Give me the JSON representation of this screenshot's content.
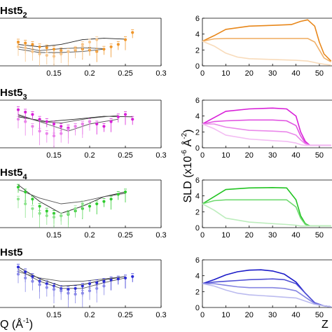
{
  "figure": {
    "left_xlabel": "Q (Å",
    "left_xlabel_sup": "-1",
    "left_xlabel_close": ")",
    "right_ylabel": "SLD (x10",
    "right_ylabel_sup": "-6",
    "right_ylabel_unit": " Å",
    "right_ylabel_sup2": "-2",
    "right_ylabel_close": ")",
    "right_xlabel_partial": "Z"
  },
  "chart_data": [
    {
      "type": "scatter",
      "panel": "reflectivity",
      "title": "Hst5",
      "title_sub": "2",
      "color": "#f0962a",
      "xlim": [
        0.1,
        0.3
      ],
      "xticks": [
        "0.15",
        "0.2",
        "0.25",
        "0.3"
      ],
      "series": [
        {
          "x": [
            0.1,
            0.11,
            0.12,
            0.13,
            0.14,
            0.15,
            0.16,
            0.17,
            0.18,
            0.19,
            0.2,
            0.21,
            0.22,
            0.23,
            0.24,
            0.25,
            0.26
          ],
          "y": [
            0.5,
            0.48,
            0.45,
            0.4,
            0.38,
            0.35,
            0.32,
            0.3,
            0.33,
            0.35,
            0.33,
            0.3,
            0.35,
            0.4,
            0.45,
            0.55,
            0.7
          ]
        },
        {
          "x": [
            0.1,
            0.11,
            0.12,
            0.13,
            0.14,
            0.15,
            0.16,
            0.17,
            0.18,
            0.19,
            0.2,
            0.21
          ],
          "y": [
            0.4,
            0.38,
            0.3,
            0.25,
            0.22,
            0.2,
            0.25,
            0.3,
            0.35,
            0.45,
            0.5,
            0.55
          ]
        }
      ],
      "fits": [
        {
          "x": [
            0.1,
            0.13,
            0.16,
            0.19,
            0.22,
            0.25
          ],
          "y": [
            0.45,
            0.4,
            0.45,
            0.55,
            0.58,
            0.56
          ]
        },
        {
          "x": [
            0.1,
            0.13,
            0.16,
            0.19,
            0.22
          ],
          "y": [
            0.4,
            0.32,
            0.36,
            0.38,
            0.36
          ]
        },
        {
          "x": [
            0.1,
            0.13,
            0.16,
            0.19,
            0.22
          ],
          "y": [
            0.35,
            0.28,
            0.28,
            0.3,
            0.35
          ]
        }
      ]
    },
    {
      "type": "line",
      "panel": "sld",
      "color": "#e8871a",
      "xlim": [
        0,
        55
      ],
      "ylim": [
        0,
        6
      ],
      "xticks": [
        "0",
        "10",
        "20",
        "30",
        "40",
        "50"
      ],
      "yticks": [
        "0",
        "2",
        "4",
        "6"
      ],
      "series": [
        {
          "x": [
            0,
            5,
            10,
            20,
            30,
            38,
            42,
            45,
            48,
            50,
            52,
            55
          ],
          "y": [
            3.1,
            3.8,
            4.6,
            5.0,
            5.1,
            5.2,
            5.6,
            5.8,
            5.0,
            3.0,
            1.5,
            0.6
          ]
        },
        {
          "x": [
            0,
            5,
            10,
            20,
            30,
            40,
            45,
            48,
            50,
            52,
            55
          ],
          "y": [
            3.1,
            3.4,
            3.45,
            3.45,
            3.45,
            3.45,
            3.45,
            3.0,
            2.0,
            1.0,
            0.5
          ]
        },
        {
          "x": [
            0,
            5,
            10,
            15,
            20,
            30,
            40,
            45,
            50,
            52,
            55
          ],
          "y": [
            3.1,
            2.5,
            1.6,
            1.1,
            0.9,
            0.8,
            0.7,
            0.6,
            0.3,
            0.2,
            0.1
          ]
        }
      ]
    },
    {
      "type": "scatter",
      "panel": "reflectivity",
      "title": "Hst5",
      "title_sub": "3",
      "color": "#d81fd8",
      "xlim": [
        0.1,
        0.3
      ],
      "xticks": [
        "0.15",
        "0.2",
        "0.25",
        "0.3"
      ],
      "series": [
        {
          "x": [
            0.1,
            0.11,
            0.12,
            0.13,
            0.14,
            0.15,
            0.16,
            0.17,
            0.18,
            0.19,
            0.2,
            0.21,
            0.22,
            0.23,
            0.24,
            0.25,
            0.26
          ],
          "y": [
            0.8,
            0.75,
            0.7,
            0.6,
            0.55,
            0.5,
            0.45,
            0.42,
            0.45,
            0.5,
            0.55,
            0.5,
            0.45,
            0.55,
            0.65,
            0.7,
            0.6
          ]
        },
        {
          "x": [
            0.1,
            0.11,
            0.12,
            0.13,
            0.14,
            0.15,
            0.16,
            0.17,
            0.18,
            0.19,
            0.2
          ],
          "y": [
            0.6,
            0.55,
            0.45,
            0.35,
            0.3,
            0.25,
            0.3,
            0.38,
            0.45,
            0.5,
            0.55
          ]
        }
      ],
      "fits": [
        {
          "x": [
            0.1,
            0.14,
            0.18,
            0.22,
            0.26
          ],
          "y": [
            0.65,
            0.55,
            0.6,
            0.66,
            0.65
          ]
        },
        {
          "x": [
            0.1,
            0.14,
            0.17,
            0.2,
            0.24
          ],
          "y": [
            0.7,
            0.5,
            0.35,
            0.5,
            0.6
          ]
        },
        {
          "x": [
            0.1,
            0.13,
            0.16,
            0.2,
            0.24
          ],
          "y": [
            0.68,
            0.55,
            0.52,
            0.62,
            0.68
          ]
        }
      ]
    },
    {
      "type": "line",
      "panel": "sld",
      "color": "#d81fd8",
      "xlim": [
        0,
        55
      ],
      "ylim": [
        0,
        6
      ],
      "xticks": [
        "0",
        "10",
        "20",
        "30",
        "40",
        "50"
      ],
      "yticks": [
        "0",
        "2",
        "4",
        "6"
      ],
      "series": [
        {
          "x": [
            0,
            5,
            10,
            20,
            30,
            36,
            40,
            42,
            44,
            46,
            55
          ],
          "y": [
            3.0,
            3.8,
            4.6,
            4.9,
            5.0,
            4.9,
            4.0,
            2.0,
            0.8,
            0.3,
            0.3
          ]
        },
        {
          "x": [
            0,
            5,
            10,
            20,
            30,
            36,
            40,
            42,
            44,
            46,
            55
          ],
          "y": [
            3.0,
            3.3,
            3.4,
            3.5,
            3.5,
            3.4,
            2.8,
            1.5,
            0.6,
            0.3,
            0.3
          ]
        },
        {
          "x": [
            0,
            5,
            10,
            20,
            30,
            36,
            40,
            42,
            44,
            46,
            55
          ],
          "y": [
            3.0,
            3.0,
            2.6,
            2.2,
            2.1,
            2.0,
            1.6,
            1.0,
            0.5,
            0.3,
            0.3
          ]
        },
        {
          "x": [
            0,
            5,
            10,
            20,
            30,
            36,
            40,
            42,
            44,
            46,
            55
          ],
          "y": [
            3.0,
            2.4,
            1.6,
            1.1,
            0.9,
            0.8,
            0.6,
            0.4,
            0.3,
            0.3,
            0.3
          ]
        }
      ]
    },
    {
      "type": "scatter",
      "panel": "reflectivity",
      "title": "Hst5",
      "title_sub": "4",
      "color": "#2fcc2f",
      "xlim": [
        0.1,
        0.3
      ],
      "xticks": [
        "0.15",
        "0.2",
        "0.25",
        "0.3"
      ],
      "series": [
        {
          "x": [
            0.1,
            0.11,
            0.12,
            0.13,
            0.14,
            0.15,
            0.16,
            0.17,
            0.18,
            0.19,
            0.2,
            0.21,
            0.22,
            0.23,
            0.24,
            0.25
          ],
          "y": [
            0.85,
            0.75,
            0.6,
            0.45,
            0.35,
            0.3,
            0.25,
            0.28,
            0.35,
            0.4,
            0.45,
            0.5,
            0.55,
            0.6,
            0.7,
            0.75
          ]
        },
        {
          "x": [
            0.1,
            0.11,
            0.12,
            0.13,
            0.14,
            0.15,
            0.16,
            0.17,
            0.18,
            0.19
          ],
          "y": [
            0.6,
            0.5,
            0.4,
            0.3,
            0.25,
            0.22,
            0.25,
            0.3,
            0.4,
            0.5
          ]
        }
      ],
      "fits": [
        {
          "x": [
            0.1,
            0.13,
            0.16,
            0.19,
            0.22,
            0.25
          ],
          "y": [
            0.9,
            0.55,
            0.3,
            0.45,
            0.65,
            0.75
          ]
        },
        {
          "x": [
            0.1,
            0.13,
            0.16,
            0.19,
            0.22,
            0.25
          ],
          "y": [
            0.8,
            0.62,
            0.5,
            0.55,
            0.65,
            0.72
          ]
        }
      ]
    },
    {
      "type": "line",
      "panel": "sld",
      "color": "#22c422",
      "xlim": [
        0,
        55
      ],
      "ylim": [
        0,
        6
      ],
      "xticks": [
        "0",
        "10",
        "20",
        "30",
        "40",
        "50"
      ],
      "yticks": [
        "0",
        "2",
        "4",
        "6"
      ],
      "series": [
        {
          "x": [
            0,
            5,
            10,
            20,
            30,
            36,
            40,
            42,
            44,
            46,
            55
          ],
          "y": [
            3.0,
            3.9,
            4.8,
            5.0,
            5.05,
            5.0,
            3.5,
            1.5,
            0.5,
            0.2,
            0.2
          ]
        },
        {
          "x": [
            0,
            5,
            10,
            20,
            30,
            36,
            40,
            42,
            44,
            46,
            55
          ],
          "y": [
            3.0,
            3.4,
            3.5,
            3.5,
            3.5,
            3.5,
            2.6,
            1.2,
            0.4,
            0.2,
            0.2
          ]
        },
        {
          "x": [
            0,
            5,
            10,
            20,
            30,
            36,
            40,
            42,
            44,
            46,
            55
          ],
          "y": [
            3.0,
            2.2,
            1.2,
            0.7,
            0.5,
            0.4,
            0.3,
            0.2,
            0.2,
            0.2,
            0.2
          ]
        }
      ]
    },
    {
      "type": "scatter",
      "panel": "reflectivity",
      "title": "Hst5",
      "title_sub": "",
      "color": "#2b2bd6",
      "xlim": [
        0.1,
        0.3
      ],
      "xticks": [
        "0.15",
        "0.2",
        "0.25",
        "0.3"
      ],
      "series": [
        {
          "x": [
            0.1,
            0.11,
            0.12,
            0.13,
            0.14,
            0.15,
            0.16,
            0.17,
            0.18,
            0.19,
            0.2,
            0.21,
            0.22,
            0.23,
            0.24,
            0.25,
            0.26
          ],
          "y": [
            0.85,
            0.75,
            0.65,
            0.55,
            0.5,
            0.45,
            0.4,
            0.38,
            0.4,
            0.45,
            0.5,
            0.52,
            0.55,
            0.58,
            0.6,
            0.62,
            0.65
          ]
        },
        {
          "x": [
            0.1,
            0.11,
            0.12,
            0.13,
            0.14,
            0.15,
            0.16,
            0.17,
            0.18,
            0.19,
            0.2,
            0.21,
            0.22
          ],
          "y": [
            0.7,
            0.62,
            0.55,
            0.48,
            0.42,
            0.38,
            0.35,
            0.3,
            0.28,
            0.3,
            0.35,
            0.4,
            0.45
          ]
        }
      ],
      "fits": [
        {
          "x": [
            0.1,
            0.13,
            0.16,
            0.19,
            0.22,
            0.25
          ],
          "y": [
            0.85,
            0.6,
            0.45,
            0.48,
            0.58,
            0.65
          ]
        },
        {
          "x": [
            0.1,
            0.13,
            0.16,
            0.19,
            0.22,
            0.25
          ],
          "y": [
            0.8,
            0.55,
            0.4,
            0.4,
            0.52,
            0.62
          ]
        },
        {
          "x": [
            0.1,
            0.13,
            0.16,
            0.19,
            0.22,
            0.25
          ],
          "y": [
            0.75,
            0.62,
            0.55,
            0.55,
            0.6,
            0.65
          ]
        }
      ]
    },
    {
      "type": "line",
      "panel": "sld",
      "color": "#1b1bc8",
      "xlim": [
        0,
        55
      ],
      "ylim": [
        0,
        6
      ],
      "xticks": [
        "0",
        "10",
        "20",
        "30",
        "40",
        "50"
      ],
      "yticks": [
        "0",
        "2",
        "4",
        "6"
      ],
      "series": [
        {
          "x": [
            0,
            5,
            10,
            15,
            20,
            25,
            30,
            35,
            40,
            44,
            48,
            52,
            55
          ],
          "y": [
            3.0,
            3.5,
            4.1,
            4.5,
            4.7,
            4.75,
            4.6,
            4.2,
            3.2,
            1.8,
            0.6,
            0.2,
            0.1
          ]
        },
        {
          "x": [
            0,
            5,
            10,
            15,
            20,
            25,
            30,
            35,
            40,
            44,
            48,
            52,
            55
          ],
          "y": [
            3.0,
            3.2,
            3.3,
            3.4,
            3.5,
            3.55,
            3.6,
            3.5,
            3.0,
            1.8,
            0.6,
            0.2,
            0.1
          ]
        },
        {
          "x": [
            0,
            5,
            10,
            15,
            20,
            25,
            30,
            35,
            40,
            44,
            48,
            52,
            55
          ],
          "y": [
            3.0,
            3.0,
            2.8,
            2.6,
            2.5,
            2.5,
            2.5,
            2.4,
            2.1,
            1.3,
            0.5,
            0.2,
            0.1
          ]
        },
        {
          "x": [
            0,
            5,
            10,
            15,
            20,
            25,
            30,
            35,
            40,
            44,
            48,
            52,
            55
          ],
          "y": [
            3.0,
            2.7,
            2.2,
            1.8,
            1.6,
            1.5,
            1.4,
            1.3,
            1.2,
            0.8,
            0.4,
            0.2,
            0.1
          ]
        }
      ]
    }
  ]
}
